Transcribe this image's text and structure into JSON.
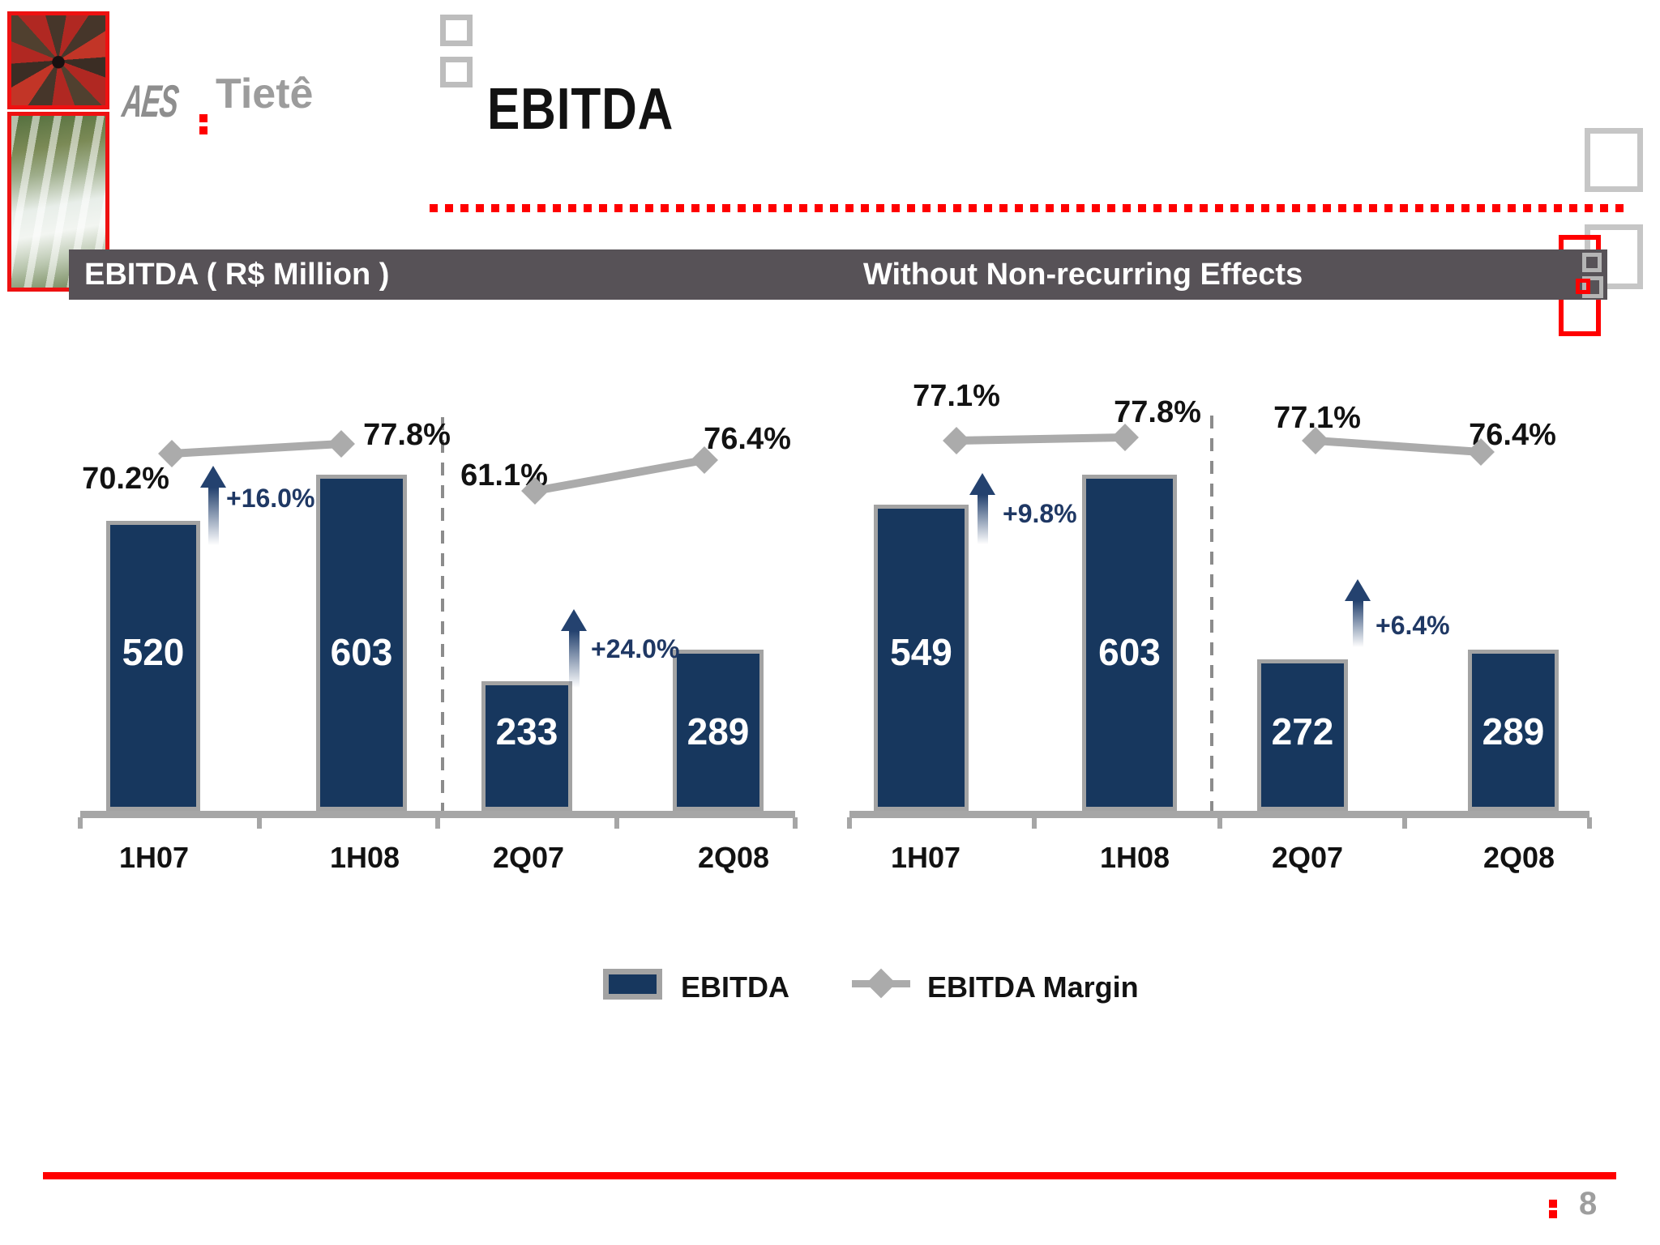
{
  "slide": {
    "title": "EBITDA",
    "page_number": "8",
    "logo": {
      "brand": "AES",
      "name": "Tietê"
    },
    "header": {
      "left": "EBITDA ( R$ Million )",
      "right": "Without Non-recurring Effects"
    },
    "legend": {
      "bar_label": "EBITDA",
      "line_label": "EBITDA Margin"
    }
  },
  "colors": {
    "bar_fill": "#17375E",
    "bar_border": "#A3A3A3",
    "axis_gray": "#A6A6A6",
    "margin_line": "#ABABAB",
    "growth_text": "#1F3864",
    "header_bg": "#575257",
    "accent_red": "#FF0000",
    "logo_gray": "#8E8E8E",
    "text_black": "#121212",
    "value_text": "#FFFFFF"
  },
  "chart_data": [
    {
      "type": "bar",
      "title": "EBITDA ( R$ Million )",
      "categories": [
        "1H07",
        "1H08",
        "2Q07",
        "2Q08"
      ],
      "series": [
        {
          "name": "EBITDA",
          "unit": "R$ million",
          "values": [
            520,
            603,
            233,
            289
          ]
        },
        {
          "name": "EBITDA Margin",
          "unit": "%",
          "values": [
            70.2,
            77.8,
            61.1,
            76.4
          ]
        }
      ],
      "margin_labels": [
        "70.2%",
        "77.8%",
        "61.1%",
        "76.4%"
      ],
      "growth_annotations": [
        {
          "label": "+16.0%",
          "from": "1H07",
          "to": "1H08"
        },
        {
          "label": "+24.0%",
          "from": "2Q07",
          "to": "2Q08"
        }
      ],
      "ylim": [
        0,
        650
      ],
      "grid": false,
      "legend_position": "bottom"
    },
    {
      "type": "bar",
      "title": "Without Non-recurring Effects",
      "categories": [
        "1H07",
        "1H08",
        "2Q07",
        "2Q08"
      ],
      "series": [
        {
          "name": "EBITDA",
          "unit": "R$ million",
          "values": [
            549,
            603,
            272,
            289
          ]
        },
        {
          "name": "EBITDA Margin",
          "unit": "%",
          "values": [
            77.1,
            77.8,
            77.1,
            76.4
          ]
        }
      ],
      "margin_labels": [
        "77.1%",
        "77.8%",
        "77.1%",
        "76.4%"
      ],
      "growth_annotations": [
        {
          "label": "+9.8%",
          "from": "1H07",
          "to": "1H08"
        },
        {
          "label": "+6.4%",
          "from": "2Q07",
          "to": "2Q08"
        }
      ],
      "ylim": [
        0,
        650
      ],
      "grid": false,
      "legend_position": "bottom"
    }
  ]
}
